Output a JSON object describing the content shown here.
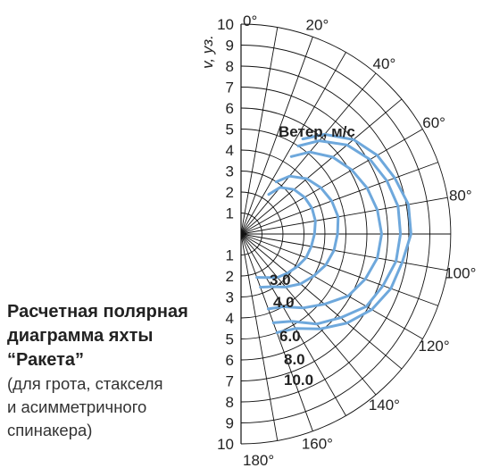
{
  "caption": {
    "title_lines": [
      "Расчетная полярная",
      "диаграмма яхты",
      "“Ракета”"
    ],
    "subtitle_lines": [
      "(для грота, стакселя",
      "и асимметричного",
      "спинакера)"
    ]
  },
  "chart_data": {
    "type": "polar",
    "axis": {
      "speed_label": "v, уз.",
      "r_max": 10,
      "speed_ticks_upper": [
        "10",
        "9",
        "8",
        "7",
        "6",
        "5",
        "4",
        "3",
        "2",
        "1"
      ],
      "speed_ticks_lower": [
        "1",
        "2",
        "3",
        "4",
        "5",
        "6",
        "7",
        "8",
        "9",
        "10"
      ],
      "angle_ticks": [
        "0°",
        "20°",
        "40°",
        "60°",
        "80°",
        "100°",
        "120°",
        "140°",
        "160°",
        "180°"
      ],
      "angle_step_deg": 10,
      "ring_step": 1
    },
    "legend_title": "Ветер, м/с",
    "line_color": "#6ea8dc",
    "series": [
      {
        "name": "3.0",
        "points": [
          [
            35,
            2.3
          ],
          [
            40,
            2.9
          ],
          [
            50,
            3.3
          ],
          [
            60,
            3.5
          ],
          [
            70,
            3.6
          ],
          [
            80,
            3.6
          ],
          [
            90,
            3.5
          ],
          [
            100,
            3.4
          ],
          [
            110,
            3.3
          ],
          [
            120,
            3.1
          ],
          [
            130,
            2.9
          ],
          [
            140,
            2.7
          ],
          [
            150,
            2.4
          ],
          [
            160,
            2.2
          ]
        ]
      },
      {
        "name": "4.0",
        "points": [
          [
            34,
            3.0
          ],
          [
            40,
            3.6
          ],
          [
            50,
            4.1
          ],
          [
            60,
            4.4
          ],
          [
            70,
            4.6
          ],
          [
            80,
            4.7
          ],
          [
            90,
            4.6
          ],
          [
            100,
            4.5
          ],
          [
            110,
            4.3
          ],
          [
            120,
            4.0
          ],
          [
            130,
            3.7
          ],
          [
            140,
            3.3
          ],
          [
            150,
            2.9
          ],
          [
            160,
            2.7
          ]
        ]
      },
      {
        "name": "6.0",
        "points": [
          [
            33,
            4.4
          ],
          [
            40,
            5.1
          ],
          [
            50,
            5.7
          ],
          [
            60,
            6.1
          ],
          [
            70,
            6.4
          ],
          [
            80,
            6.6
          ],
          [
            90,
            6.7
          ],
          [
            100,
            6.6
          ],
          [
            110,
            6.3
          ],
          [
            120,
            5.9
          ],
          [
            130,
            5.2
          ],
          [
            140,
            4.6
          ],
          [
            150,
            4.0
          ],
          [
            160,
            3.8
          ]
        ]
      },
      {
        "name": "8.0",
        "points": [
          [
            33,
            5.0
          ],
          [
            40,
            5.8
          ],
          [
            50,
            6.6
          ],
          [
            60,
            7.1
          ],
          [
            70,
            7.4
          ],
          [
            80,
            7.6
          ],
          [
            90,
            7.6
          ],
          [
            100,
            7.5
          ],
          [
            110,
            7.2
          ],
          [
            120,
            6.9
          ],
          [
            130,
            6.2
          ],
          [
            140,
            5.6
          ],
          [
            150,
            4.8
          ],
          [
            160,
            4.5
          ]
        ]
      },
      {
        "name": "10.0",
        "points": [
          [
            33,
            5.4
          ],
          [
            40,
            6.2
          ],
          [
            50,
            7.0
          ],
          [
            60,
            7.5
          ],
          [
            70,
            7.8
          ],
          [
            80,
            8.1
          ],
          [
            90,
            8.1
          ],
          [
            100,
            7.8
          ],
          [
            110,
            7.6
          ],
          [
            120,
            7.2
          ],
          [
            130,
            6.6
          ],
          [
            140,
            5.9
          ],
          [
            150,
            5.2
          ],
          [
            160,
            5.0
          ]
        ]
      }
    ]
  }
}
